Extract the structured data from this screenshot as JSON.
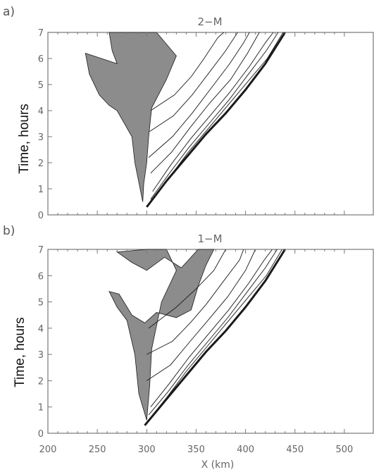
{
  "chart_data": [
    {
      "type": "contour",
      "panel_label": "a)",
      "title": "2−M",
      "ylabel": "Time, hours",
      "xlabel": "",
      "xlim": [
        200,
        530
      ],
      "ylim": [
        0,
        7
      ],
      "yticks": [
        "0",
        "1",
        "2",
        "3",
        "4",
        "5",
        "6",
        "7"
      ],
      "xticks": [],
      "colors": {
        "shade": "#8c8c8c",
        "contour": "#1a1a1a",
        "frame": "#777777"
      },
      "front_edge": [
        [
          300,
          0.3
        ],
        [
          320,
          1.3
        ],
        [
          340,
          2.2
        ],
        [
          360,
          3.1
        ],
        [
          380,
          3.9
        ],
        [
          400,
          4.8
        ],
        [
          420,
          5.8
        ],
        [
          440,
          7
        ]
      ],
      "shaded_region": [
        [
          290,
          7
        ],
        [
          310,
          7
        ],
        [
          330,
          6.1
        ],
        [
          320,
          5.2
        ],
        [
          305,
          4.1
        ],
        [
          302,
          3.0
        ],
        [
          300,
          2.0
        ],
        [
          297,
          1.2
        ],
        [
          296,
          0.5
        ],
        [
          288,
          2.0
        ],
        [
          285,
          3.0
        ],
        [
          270,
          4.0
        ],
        [
          262,
          4.2
        ],
        [
          252,
          4.6
        ],
        [
          242,
          5.4
        ],
        [
          238,
          6.2
        ],
        [
          270,
          5.8
        ],
        [
          265,
          6.3
        ],
        [
          262,
          7
        ]
      ],
      "contour_lines": [
        [
          [
            302,
            0.4
          ],
          [
            322,
            1.4
          ],
          [
            342,
            2.4
          ],
          [
            362,
            3.3
          ],
          [
            382,
            4.2
          ],
          [
            402,
            5.1
          ],
          [
            422,
            6.0
          ],
          [
            438,
            7
          ]
        ],
        [
          [
            304,
            0.6
          ],
          [
            323,
            1.6
          ],
          [
            343,
            2.6
          ],
          [
            363,
            3.5
          ],
          [
            383,
            4.4
          ],
          [
            403,
            5.4
          ],
          [
            421,
            6.3
          ],
          [
            433,
            7
          ]
        ],
        [
          [
            306,
            0.9
          ],
          [
            324,
            1.9
          ],
          [
            344,
            2.9
          ],
          [
            364,
            3.8
          ],
          [
            384,
            4.7
          ],
          [
            404,
            5.7
          ],
          [
            420,
            6.6
          ],
          [
            428,
            7
          ]
        ],
        [
          [
            304,
            1.6
          ],
          [
            325,
            2.4
          ],
          [
            345,
            3.4
          ],
          [
            364,
            4.3
          ],
          [
            385,
            5.2
          ],
          [
            402,
            6.2
          ],
          [
            414,
            7
          ]
        ],
        [
          [
            302,
            2.2
          ],
          [
            326,
            3.0
          ],
          [
            346,
            3.9
          ],
          [
            364,
            4.8
          ],
          [
            384,
            5.8
          ],
          [
            398,
            6.6
          ],
          [
            404,
            7
          ]
        ],
        [
          [
            303,
            3.2
          ],
          [
            327,
            3.8
          ],
          [
            346,
            4.6
          ],
          [
            362,
            5.4
          ],
          [
            380,
            6.3
          ],
          [
            392,
            7
          ]
        ],
        [
          [
            304,
            4.0
          ],
          [
            328,
            4.6
          ],
          [
            345,
            5.3
          ],
          [
            358,
            6.0
          ],
          [
            372,
            6.8
          ],
          [
            378,
            7
          ]
        ]
      ]
    },
    {
      "type": "contour",
      "panel_label": "b)",
      "title": "1−M",
      "ylabel": "Time, hours",
      "xlabel": "X (km)",
      "xlim": [
        200,
        530
      ],
      "ylim": [
        0,
        7
      ],
      "yticks": [
        "0",
        "1",
        "2",
        "3",
        "4",
        "5",
        "6",
        "7"
      ],
      "xticks": [
        "200",
        "250",
        "300",
        "350",
        "400",
        "450",
        "500"
      ],
      "colors": {
        "shade": "#8c8c8c",
        "contour": "#1a1a1a",
        "frame": "#777777"
      },
      "front_edge": [
        [
          298,
          0.3
        ],
        [
          320,
          1.3
        ],
        [
          340,
          2.2
        ],
        [
          360,
          3.1
        ],
        [
          380,
          3.9
        ],
        [
          400,
          4.8
        ],
        [
          420,
          5.8
        ],
        [
          440,
          7
        ]
      ],
      "shaded_region": [
        [
          300,
          0.5
        ],
        [
          292,
          1.5
        ],
        [
          288,
          3.0
        ],
        [
          280,
          4.3
        ],
        [
          270,
          4.8
        ],
        [
          262,
          5.4
        ],
        [
          272,
          5.3
        ],
        [
          285,
          4.5
        ],
        [
          298,
          4.2
        ],
        [
          310,
          4.6
        ],
        [
          330,
          4.4
        ],
        [
          345,
          4.7
        ],
        [
          352,
          5.6
        ],
        [
          360,
          6.4
        ],
        [
          368,
          7
        ],
        [
          352,
          7
        ],
        [
          335,
          6.3
        ],
        [
          318,
          6.7
        ],
        [
          300,
          6.2
        ],
        [
          285,
          6.5
        ],
        [
          270,
          6.9
        ],
        [
          300,
          7
        ],
        [
          320,
          7
        ],
        [
          330,
          6.2
        ],
        [
          315,
          5.0
        ],
        [
          305,
          3.2
        ],
        [
          303,
          1.8
        ]
      ],
      "contour_lines": [
        [
          [
            300,
            0.4
          ],
          [
            321,
            1.4
          ],
          [
            341,
            2.4
          ],
          [
            361,
            3.3
          ],
          [
            381,
            4.2
          ],
          [
            401,
            5.1
          ],
          [
            421,
            6.0
          ],
          [
            437,
            7
          ]
        ],
        [
          [
            302,
            0.7
          ],
          [
            322,
            1.6
          ],
          [
            342,
            2.6
          ],
          [
            362,
            3.5
          ],
          [
            382,
            4.4
          ],
          [
            402,
            5.4
          ],
          [
            420,
            6.3
          ],
          [
            432,
            7
          ]
        ],
        [
          [
            304,
            1.0
          ],
          [
            323,
            1.9
          ],
          [
            343,
            2.9
          ],
          [
            363,
            3.8
          ],
          [
            383,
            4.7
          ],
          [
            403,
            5.7
          ],
          [
            419,
            6.6
          ],
          [
            427,
            7
          ]
        ],
        [
          [
            300,
            2.0
          ],
          [
            324,
            2.6
          ],
          [
            344,
            3.5
          ],
          [
            362,
            4.3
          ],
          [
            382,
            5.2
          ],
          [
            400,
            6.2
          ],
          [
            410,
            7
          ]
        ],
        [
          [
            300,
            3.0
          ],
          [
            326,
            3.5
          ],
          [
            344,
            4.2
          ],
          [
            360,
            4.9
          ],
          [
            378,
            5.8
          ],
          [
            394,
            6.6
          ],
          [
            398,
            7
          ]
        ],
        [
          [
            302,
            4.0
          ],
          [
            330,
            4.8
          ],
          [
            350,
            5.5
          ],
          [
            368,
            6.2
          ],
          [
            380,
            7
          ]
        ]
      ]
    }
  ]
}
